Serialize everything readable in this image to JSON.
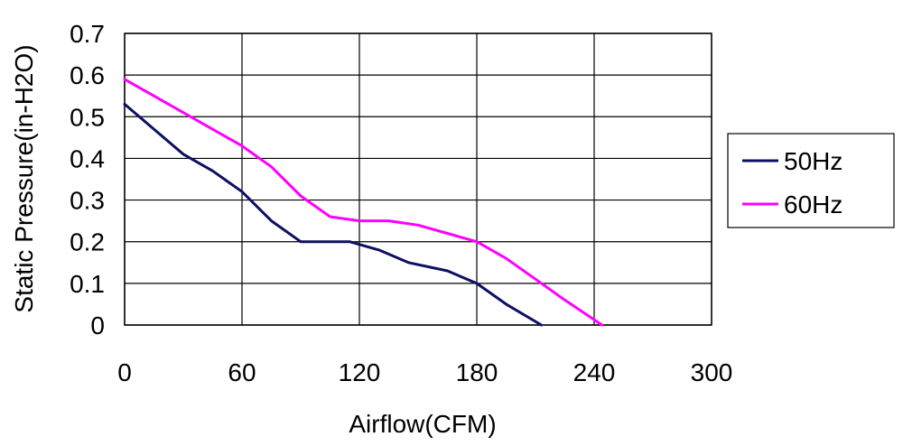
{
  "chart_data": {
    "type": "line",
    "title": "",
    "xlabel": "Airflow(CFM)",
    "ylabel": "Static Pressure(in-H2O)",
    "xlim": [
      0,
      300
    ],
    "ylim": [
      0,
      0.7
    ],
    "x_ticks": [
      0,
      60,
      120,
      180,
      240,
      300
    ],
    "y_ticks": [
      0,
      0.1,
      0.2,
      0.3,
      0.4,
      0.5,
      0.6,
      0.7
    ],
    "x_tick_labels": [
      "0",
      "60",
      "120",
      "180",
      "240",
      "300"
    ],
    "y_tick_labels": [
      "0",
      "0.1",
      "0.2",
      "0.3",
      "0.4",
      "0.5",
      "0.6",
      "0.7"
    ],
    "grid": true,
    "legend_position": "right",
    "series": [
      {
        "name": "50Hz",
        "color": "#0c1060",
        "points": [
          [
            0,
            0.53
          ],
          [
            15,
            0.47
          ],
          [
            30,
            0.41
          ],
          [
            45,
            0.37
          ],
          [
            60,
            0.32
          ],
          [
            75,
            0.25
          ],
          [
            90,
            0.2
          ],
          [
            100,
            0.2
          ],
          [
            115,
            0.2
          ],
          [
            130,
            0.18
          ],
          [
            145,
            0.15
          ],
          [
            165,
            0.13
          ],
          [
            180,
            0.1
          ],
          [
            195,
            0.05
          ],
          [
            213,
            0
          ]
        ]
      },
      {
        "name": "60Hz",
        "color": "#ff00ff",
        "points": [
          [
            0,
            0.59
          ],
          [
            30,
            0.51
          ],
          [
            60,
            0.43
          ],
          [
            75,
            0.38
          ],
          [
            90,
            0.31
          ],
          [
            105,
            0.26
          ],
          [
            120,
            0.25
          ],
          [
            135,
            0.25
          ],
          [
            150,
            0.24
          ],
          [
            165,
            0.22
          ],
          [
            180,
            0.2
          ],
          [
            195,
            0.16
          ],
          [
            210,
            0.11
          ],
          [
            225,
            0.06
          ],
          [
            244,
            0
          ]
        ]
      }
    ]
  }
}
